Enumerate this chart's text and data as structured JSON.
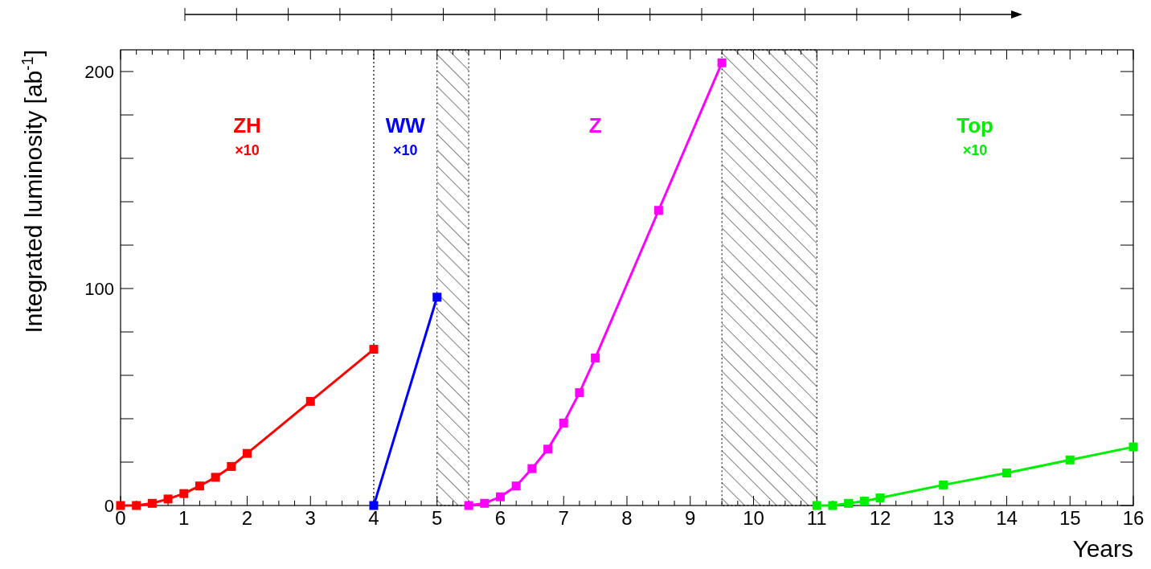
{
  "chart_data": {
    "type": "line",
    "xlabel": "Years",
    "ylabel": "Integrated luminosity [ab$^{-1}$]",
    "xlim": [
      0,
      16
    ],
    "ylim": [
      0,
      210
    ],
    "xticks": [
      0,
      1,
      2,
      3,
      4,
      5,
      6,
      7,
      8,
      9,
      10,
      11,
      12,
      13,
      14,
      15,
      16
    ],
    "yticks": [
      0,
      {
        "value": 20,
        "label": null
      },
      {
        "value": 40,
        "label": null
      },
      {
        "value": 60,
        "label": null
      },
      {
        "value": 80,
        "label": null
      },
      100,
      {
        "value": 120,
        "label": null
      },
      {
        "value": 140,
        "label": null
      },
      {
        "value": 160,
        "label": null
      },
      {
        "value": 180,
        "label": null
      },
      200
    ],
    "marker": "square",
    "line_style": "solid",
    "grid": false,
    "series": [
      {
        "name": "ZH$_{×10}$",
        "color": "#ff0000",
        "x": [
          0,
          0.25,
          0.5,
          0.75,
          1,
          1.25,
          1.5,
          1.75,
          2,
          3,
          4
        ],
        "values": [
          0,
          0,
          1,
          3,
          5.5,
          9,
          13,
          18,
          24,
          48,
          72
        ]
      },
      {
        "name": "WW$_{×10}$",
        "color": "#0000ff",
        "x": [
          4,
          5
        ],
        "values": [
          0,
          96
        ]
      },
      {
        "name": "Z",
        "color": "#ff00ff",
        "x": [
          5.5,
          5.75,
          6,
          6.25,
          6.5,
          6.75,
          7,
          7.25,
          7.5,
          8.5,
          9.5
        ],
        "values": [
          0,
          1,
          4,
          9,
          17,
          26,
          38,
          52,
          68,
          136,
          204
        ]
      },
      {
        "name": "Top$_{×10}$",
        "color": "#00ee00",
        "x": [
          11,
          11.25,
          11.5,
          11.75,
          12,
          13,
          14,
          15,
          16
        ],
        "values": [
          0,
          0,
          1,
          2,
          3.5,
          9.5,
          15,
          21,
          27
        ]
      }
    ],
    "ref_lines": [
      {
        "axis": "x",
        "value": 4,
        "line_style": "dotted",
        "color": "#000000"
      }
    ],
    "bands": [
      {
        "axis": "x",
        "from": 5,
        "to": 5.5,
        "color": "#000000"
      },
      {
        "axis": "x",
        "from": 9.5,
        "to": 11,
        "color": "#000000"
      }
    ]
  }
}
